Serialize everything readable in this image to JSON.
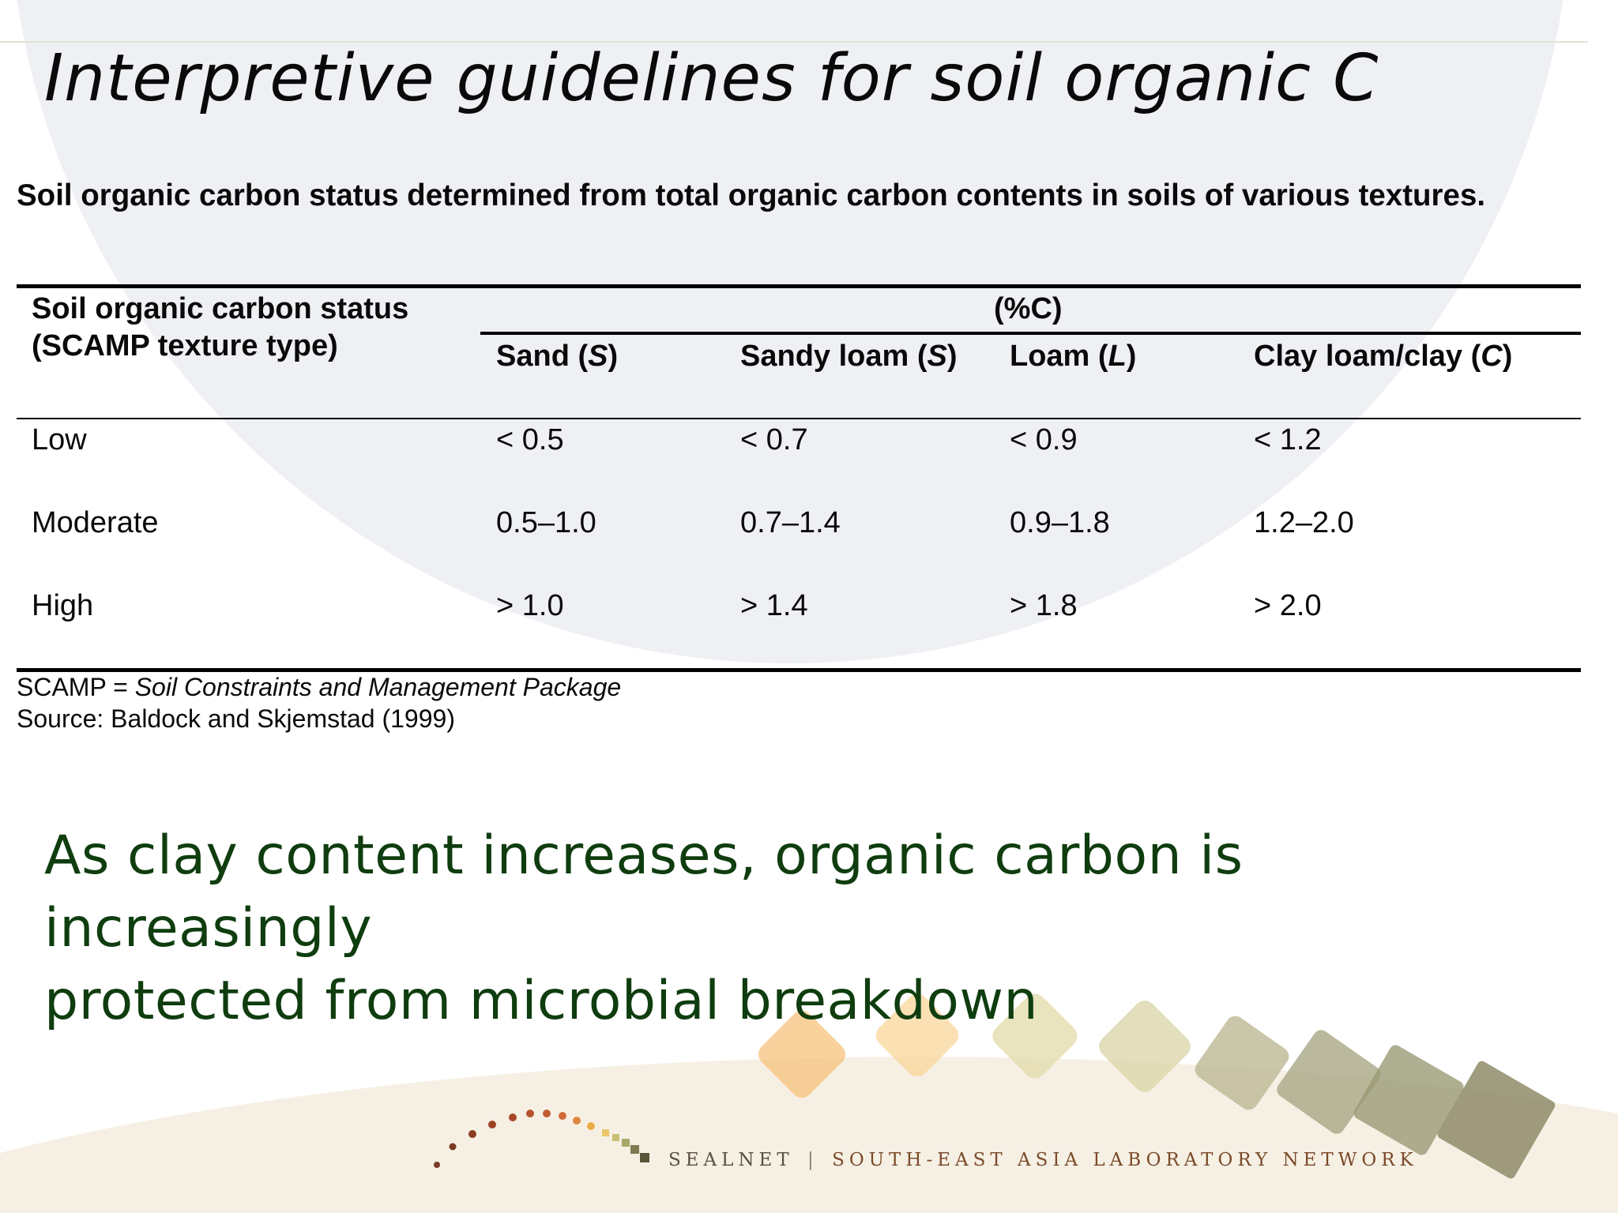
{
  "title": "Interpretive guidelines for soil organic C",
  "caption": "Soil organic carbon status determined from total organic carbon contents in soils of various textures.",
  "table": {
    "header_status_line1": "Soil organic carbon status",
    "header_status_line2": "(SCAMP texture type)",
    "unit_header": "(%C)",
    "columns": [
      {
        "label": "Sand (",
        "code": "S",
        "close": ")"
      },
      {
        "label": "Sandy loam (",
        "code": "S",
        "close": ")"
      },
      {
        "label": "Loam (",
        "code": "L",
        "close": ")"
      },
      {
        "label": "Clay loam/clay (",
        "code": "C",
        "close": ")"
      }
    ],
    "rows": [
      {
        "status": "Low",
        "values": [
          "< 0.5",
          "< 0.7",
          "< 0.9",
          "< 1.2"
        ]
      },
      {
        "status": "Moderate",
        "values": [
          "0.5–1.0",
          "0.7–1.4",
          "0.9–1.8",
          "1.2–2.0"
        ]
      },
      {
        "status": "High",
        "values": [
          "> 1.0",
          "> 1.4",
          "> 1.8",
          "> 2.0"
        ]
      }
    ]
  },
  "footnote": {
    "scamp_prefix": "SCAMP = ",
    "scamp_full": "Soil Constraints and Management Package",
    "source": "Source: Baldock and Skjemstad (1999)"
  },
  "takeaway_line1": "As clay content increases, organic carbon is increasingly",
  "takeaway_line2": "protected from microbial breakdown",
  "brand": {
    "name": "SEALNET",
    "separator": "|",
    "full": "SOUTH-EAST ASIA LABORATORY NETWORK"
  },
  "colors": {
    "takeaway_text": "#0f3d0f",
    "background_circle": "#eef0f4",
    "footer_band": "#f6f0e4"
  },
  "logo_icon": "sealnet-arc-dots-icon",
  "decor_icon": "diamond-shapes-icon"
}
